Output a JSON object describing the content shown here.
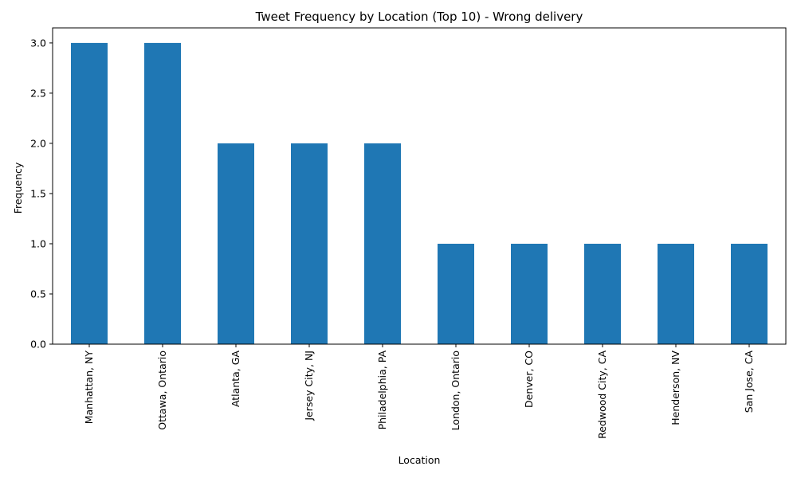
{
  "chart_data": {
    "type": "bar",
    "title": "Tweet Frequency by Location (Top 10) - Wrong delivery",
    "xlabel": "Location",
    "ylabel": "Frequency",
    "categories": [
      "Manhattan, NY",
      "Ottawa, Ontario",
      "Atlanta, GA",
      "Jersey City, NJ",
      "Philadelphia, PA",
      "London, Ontario",
      "Denver, CO",
      "Redwood City, CA",
      "Henderson, NV",
      "San Jose, CA"
    ],
    "values": [
      3,
      3,
      2,
      2,
      2,
      1,
      1,
      1,
      1,
      1
    ],
    "ylim": [
      0,
      3.15
    ],
    "yticks": [
      "0.0",
      "0.5",
      "1.0",
      "1.5",
      "2.0",
      "2.5",
      "3.0"
    ],
    "bar_color": "#1f77b4",
    "grid": false,
    "legend": "none"
  }
}
